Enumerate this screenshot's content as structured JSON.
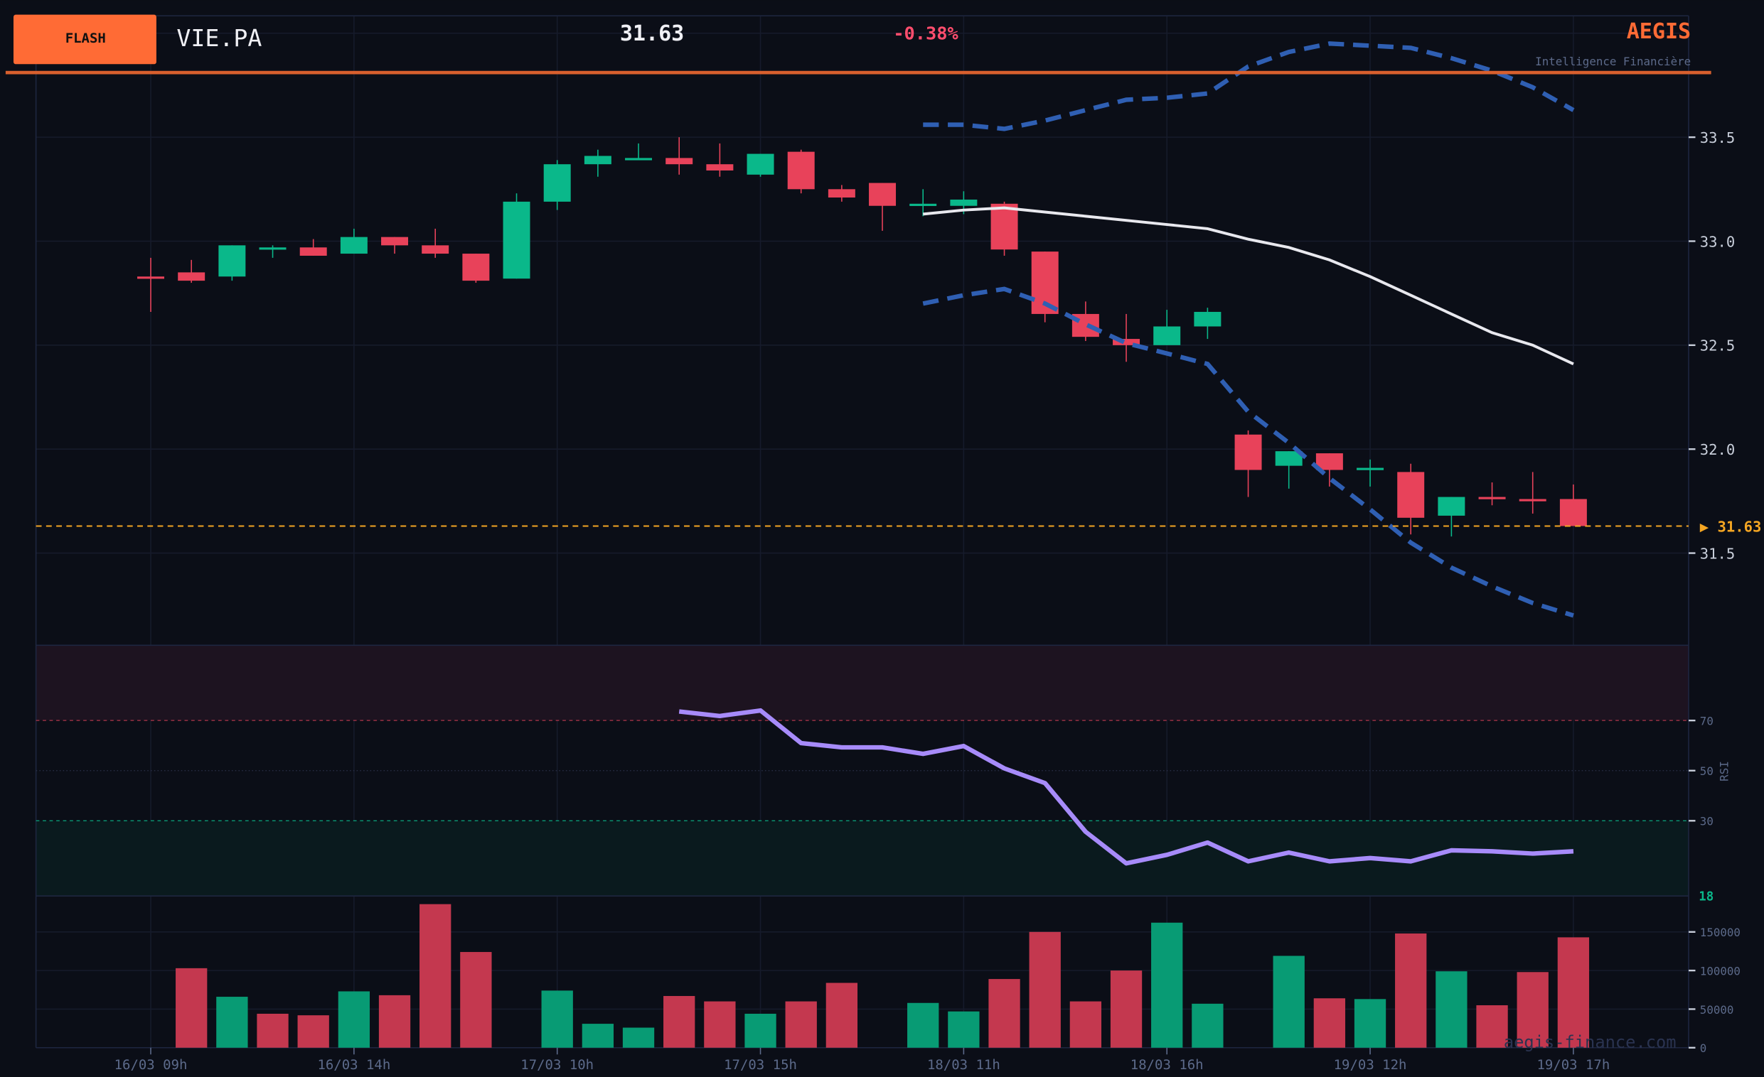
{
  "header": {
    "badge": "FLASH",
    "symbol": "VIE.PA",
    "price": "31.63",
    "change": "-0.38%",
    "brand": "AEGIS",
    "brand_tagline": "Intelligence Financière"
  },
  "watermark": "aegis-finance.com",
  "colors": {
    "background": "#0b0e17",
    "up": "#0ab88a",
    "down": "#e8425a",
    "volume_up": "#089b74",
    "volume_down": "#c4384f",
    "accent": "#ff6b35",
    "rsi_line": "#a78bfa",
    "bollinger_band": "#2f5fb3",
    "bollinger_mid": "#e8e8ee",
    "last_price": "#f5a623"
  },
  "chart_data": {
    "type": "candlestick",
    "title": "VIE.PA",
    "price_axis": {
      "ylim": [
        31.06,
        34.08
      ],
      "ticks": [
        31.5,
        32.0,
        32.5,
        33.0,
        33.5
      ],
      "gridlines": [
        31.5,
        32.0,
        32.5,
        33.0,
        33.5,
        34.0
      ]
    },
    "x_tick_labels": [
      {
        "index": 0,
        "label": "16/03 09h"
      },
      {
        "index": 5,
        "label": "16/03 14h"
      },
      {
        "index": 10,
        "label": "17/03 10h"
      },
      {
        "index": 15,
        "label": "17/03 15h"
      },
      {
        "index": 20,
        "label": "18/03 11h"
      },
      {
        "index": 25,
        "label": "18/03 16h"
      },
      {
        "index": 30,
        "label": "19/03 12h"
      },
      {
        "index": 35,
        "label": "19/03 17h"
      }
    ],
    "last_price": {
      "value": 31.63,
      "label": "▶ 31.63"
    },
    "candles": [
      {
        "o": 32.83,
        "h": 32.92,
        "l": 32.66,
        "c": 32.82
      },
      {
        "o": 32.85,
        "h": 32.91,
        "l": 32.8,
        "c": 32.81
      },
      {
        "o": 32.83,
        "h": 32.98,
        "l": 32.81,
        "c": 32.98
      },
      {
        "o": 32.97,
        "h": 32.98,
        "l": 32.92,
        "c": 32.97
      },
      {
        "o": 32.97,
        "h": 33.01,
        "l": 32.93,
        "c": 32.93
      },
      {
        "o": 32.94,
        "h": 33.06,
        "l": 32.94,
        "c": 33.02
      },
      {
        "o": 33.02,
        "h": 33.02,
        "l": 32.94,
        "c": 32.98
      },
      {
        "o": 32.98,
        "h": 33.06,
        "l": 32.92,
        "c": 32.94
      },
      {
        "o": 32.94,
        "h": 32.94,
        "l": 32.8,
        "c": 32.81
      },
      {
        "o": 32.82,
        "h": 33.23,
        "l": 32.82,
        "c": 33.19
      },
      {
        "o": 33.19,
        "h": 33.39,
        "l": 33.15,
        "c": 33.37
      },
      {
        "o": 33.37,
        "h": 33.44,
        "l": 33.31,
        "c": 33.41
      },
      {
        "o": 33.39,
        "h": 33.47,
        "l": 33.39,
        "c": 33.4
      },
      {
        "o": 33.4,
        "h": 33.5,
        "l": 33.32,
        "c": 33.37
      },
      {
        "o": 33.37,
        "h": 33.47,
        "l": 33.31,
        "c": 33.34
      },
      {
        "o": 33.32,
        "h": 33.42,
        "l": 33.31,
        "c": 33.42
      },
      {
        "o": 33.43,
        "h": 33.44,
        "l": 33.23,
        "c": 33.25
      },
      {
        "o": 33.25,
        "h": 33.27,
        "l": 33.19,
        "c": 33.21
      },
      {
        "o": 33.28,
        "h": 33.28,
        "l": 33.05,
        "c": 33.17
      },
      {
        "o": 33.17,
        "h": 33.25,
        "l": 33.12,
        "c": 33.18
      },
      {
        "o": 33.17,
        "h": 33.24,
        "l": 33.13,
        "c": 33.2
      },
      {
        "o": 33.18,
        "h": 33.19,
        "l": 32.93,
        "c": 32.96
      },
      {
        "o": 32.95,
        "h": 32.95,
        "l": 32.61,
        "c": 32.65
      },
      {
        "o": 32.65,
        "h": 32.71,
        "l": 32.52,
        "c": 32.54
      },
      {
        "o": 32.53,
        "h": 32.65,
        "l": 32.42,
        "c": 32.5
      },
      {
        "o": 32.5,
        "h": 32.67,
        "l": 32.5,
        "c": 32.59
      },
      {
        "o": 32.59,
        "h": 32.68,
        "l": 32.53,
        "c": 32.66
      },
      {
        "o": 32.07,
        "h": 32.09,
        "l": 31.77,
        "c": 31.9
      },
      {
        "o": 31.92,
        "h": 31.99,
        "l": 31.81,
        "c": 31.99
      },
      {
        "o": 31.98,
        "h": 31.98,
        "l": 31.82,
        "c": 31.9
      },
      {
        "o": 31.9,
        "h": 31.95,
        "l": 31.82,
        "c": 31.91
      },
      {
        "o": 31.89,
        "h": 31.93,
        "l": 31.59,
        "c": 31.67
      },
      {
        "o": 31.68,
        "h": 31.77,
        "l": 31.58,
        "c": 31.77
      },
      {
        "o": 31.77,
        "h": 31.84,
        "l": 31.73,
        "c": 31.76
      },
      {
        "o": 31.76,
        "h": 31.89,
        "l": 31.69,
        "c": 31.75
      },
      {
        "o": 31.76,
        "h": 31.83,
        "l": 31.63,
        "c": 31.63
      }
    ],
    "bollinger": {
      "start_index": 19,
      "upper": [
        33.56,
        33.56,
        33.54,
        33.58,
        33.63,
        33.68,
        33.69,
        33.71,
        33.84,
        33.91,
        33.95,
        33.94,
        33.93,
        33.88,
        33.82,
        33.74,
        33.63
      ],
      "middle": [
        33.13,
        33.15,
        33.16,
        33.14,
        33.12,
        33.1,
        33.08,
        33.06,
        33.01,
        32.97,
        32.91,
        32.83,
        32.74,
        32.65,
        32.56,
        32.5,
        32.41
      ],
      "lower": [
        32.7,
        32.74,
        32.77,
        32.7,
        32.6,
        32.51,
        32.46,
        32.41,
        32.18,
        32.03,
        31.86,
        31.71,
        31.55,
        31.43,
        31.34,
        31.26,
        31.2
      ]
    },
    "rsi": {
      "label": "RSI",
      "ylim": [
        0,
        100
      ],
      "ticks": [
        70,
        50,
        30
      ],
      "overbought": 70,
      "oversold": 30,
      "current_label": "18",
      "start_index": 13,
      "values": [
        73.6,
        71.8,
        74.0,
        61.0,
        59.3,
        59.3,
        56.7,
        59.8,
        50.9,
        45.0,
        25.6,
        13.0,
        16.4,
        21.3,
        13.8,
        17.3,
        13.8,
        15.1,
        13.8,
        18.2,
        17.8,
        16.9,
        17.8
      ]
    },
    "volume": {
      "ylim": [
        0,
        200000
      ],
      "ticks": [
        0,
        50000,
        100000,
        150000
      ],
      "values": [
        0,
        103000,
        66000,
        44000,
        42000,
        73000,
        68000,
        186000,
        124000,
        0,
        74000,
        31000,
        26000,
        67000,
        60000,
        44000,
        60000,
        84000,
        0,
        58000,
        47000,
        89000,
        150000,
        60000,
        100000,
        162000,
        57000,
        0,
        119000,
        64000,
        63000,
        148000,
        99000,
        55000,
        98000,
        143000
      ],
      "up": [
        false,
        false,
        true,
        false,
        false,
        true,
        false,
        false,
        false,
        true,
        true,
        true,
        true,
        false,
        false,
        true,
        false,
        false,
        false,
        true,
        true,
        false,
        false,
        false,
        false,
        true,
        true,
        false,
        true,
        false,
        true,
        false,
        true,
        false,
        false,
        false
      ]
    }
  }
}
